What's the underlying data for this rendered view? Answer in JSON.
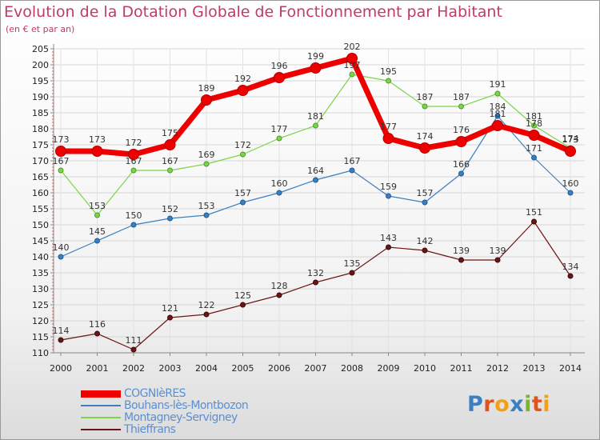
{
  "title": "Evolution de la Dotation Globale de Fonctionnement par Habitant",
  "subtitle": "(en € et par an)",
  "logo": {
    "text": "Proxiti",
    "letters": [
      {
        "ch": "P",
        "color": "#3a7fc1"
      },
      {
        "ch": "r",
        "color": "#e0531e"
      },
      {
        "ch": "o",
        "color": "#f2a01c"
      },
      {
        "ch": "x",
        "color": "#3a7fc1"
      },
      {
        "ch": "i",
        "color": "#7ab52a"
      },
      {
        "ch": "t",
        "color": "#e0531e"
      },
      {
        "ch": "i",
        "color": "#f2a01c"
      }
    ]
  },
  "chart_data": {
    "type": "line",
    "x": [
      "2000",
      "2001",
      "2002",
      "2003",
      "2004",
      "2005",
      "2006",
      "2007",
      "2008",
      "2009",
      "2010",
      "2011",
      "2012",
      "2013",
      "2014"
    ],
    "ylim": [
      110,
      205
    ],
    "yticks": [
      110,
      115,
      120,
      125,
      130,
      135,
      140,
      145,
      150,
      155,
      160,
      165,
      170,
      175,
      180,
      185,
      190,
      195,
      200,
      205
    ],
    "grid": true,
    "legend_position": "bottom-left",
    "series": [
      {
        "name": "COGNIèRES",
        "color": "#ee0000",
        "values": [
          173,
          173,
          172,
          175,
          189,
          192,
          196,
          199,
          202,
          177,
          174,
          176,
          181,
          178,
          173
        ]
      },
      {
        "name": "Bouhans-lès-Montbozon",
        "color": "#3a7fc1",
        "values": [
          140,
          145,
          150,
          152,
          153,
          157,
          160,
          164,
          167,
          159,
          157,
          166,
          184,
          171,
          160
        ]
      },
      {
        "name": "Montagney-Servigney",
        "color": "#7dd34a",
        "values": [
          167,
          153,
          167,
          167,
          169,
          172,
          177,
          181,
          197,
          195,
          187,
          187,
          191,
          181,
          174
        ]
      },
      {
        "name": "Thieffrans",
        "color": "#6b1616",
        "values": [
          114,
          116,
          111,
          121,
          122,
          125,
          128,
          132,
          135,
          143,
          142,
          139,
          139,
          151,
          134
        ]
      }
    ]
  }
}
